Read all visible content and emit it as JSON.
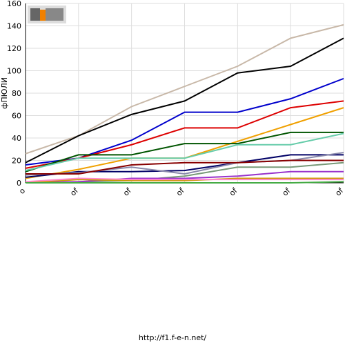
{
  "chart_data": {
    "type": "line",
    "y_label": "фПЮЛИ",
    "footer": "http://f1.f-e-n.net/",
    "categories": [
      "o",
      "of",
      "of",
      "of",
      "of",
      "of",
      "of"
    ],
    "ylim": [
      0,
      160
    ],
    "yticks": [
      0,
      20,
      40,
      60,
      80,
      100,
      120,
      140,
      160
    ],
    "grid": true,
    "series": [
      {
        "color": "#c8b8a8",
        "values": [
          26,
          42,
          68,
          86,
          104,
          129,
          141
        ]
      },
      {
        "color": "#000000",
        "values": [
          18,
          42,
          61,
          73,
          98,
          104,
          129
        ]
      },
      {
        "color": "#0000cc",
        "values": [
          16,
          22,
          38,
          63,
          63,
          75,
          93
        ]
      },
      {
        "color": "#dd0000",
        "values": [
          13,
          22,
          34,
          49,
          49,
          67,
          73
        ]
      },
      {
        "color": "#f0a000",
        "values": [
          4,
          12,
          22,
          22,
          37,
          52,
          67
        ]
      },
      {
        "color": "#005500",
        "values": [
          10,
          25,
          25,
          35,
          35,
          45,
          45
        ]
      },
      {
        "color": "#66ccaa",
        "values": [
          11,
          22,
          22,
          22,
          34,
          34,
          44
        ]
      },
      {
        "color": "#000066",
        "values": [
          5,
          10,
          10,
          11,
          18,
          25,
          25
        ]
      },
      {
        "color": "#8888aa",
        "values": [
          7,
          9,
          14,
          8,
          18,
          20,
          27
        ]
      },
      {
        "color": "#880000",
        "values": [
          8,
          8,
          16,
          18,
          18,
          20,
          20
        ]
      },
      {
        "color": "#779977",
        "values": [
          0,
          1,
          2,
          6,
          14,
          14,
          18
        ]
      },
      {
        "color": "#9933cc",
        "values": [
          0,
          1,
          4,
          4,
          6,
          10,
          10
        ]
      },
      {
        "color": "#cc9900",
        "values": [
          0,
          3,
          2,
          2,
          4,
          4,
          4
        ]
      },
      {
        "color": "#ff88cc",
        "values": [
          1,
          4,
          3,
          3,
          3,
          3,
          3
        ]
      },
      {
        "color": "#44aa44",
        "values": [
          0,
          0,
          0,
          0,
          0,
          0,
          1
        ]
      }
    ]
  }
}
